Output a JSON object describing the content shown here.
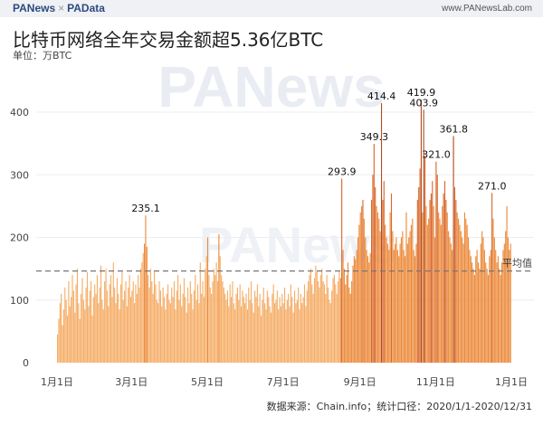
{
  "header": {
    "brand_left": "PANews",
    "brand_sep": "×",
    "brand_right": "PAData",
    "site": "www.PANewsLab.com"
  },
  "title": "比特币网络全年交易金额超5.36亿BTC",
  "unit": "单位：万BTC",
  "footer": "数据来源：Chain.info；统计口径：2020/1/1-2020/12/31",
  "watermark": "PANews",
  "colors": {
    "low": "#f5ad66",
    "mid": "#ec8a3a",
    "high": "#d9682a",
    "peak": "#b44d1c",
    "avg_line": "#777777"
  },
  "chart_data": {
    "type": "bar",
    "title": "比特币网络全年交易金额超5.36亿BTC",
    "ylabel": "单位：万BTC",
    "ylim": [
      0,
      440
    ],
    "yticks": [
      0,
      100,
      200,
      300,
      400
    ],
    "xticks": [
      "1月1日",
      "3月1日",
      "5月1日",
      "7月1日",
      "9月1日",
      "11月1日",
      "1月1日"
    ],
    "grid": true,
    "average": {
      "label": "平均值",
      "value": 146.4
    },
    "annotations": [
      {
        "day": 71,
        "label": "235.1"
      },
      {
        "day": 229,
        "label": "293.9"
      },
      {
        "day": 255,
        "label": "349.3"
      },
      {
        "day": 261,
        "label": "414.4"
      },
      {
        "day": 293,
        "label": "419.9"
      },
      {
        "day": 295,
        "label": "403.9"
      },
      {
        "day": 305,
        "label": "321.0"
      },
      {
        "day": 319,
        "label": "361.8"
      },
      {
        "day": 350,
        "label": "271.0"
      }
    ],
    "values": [
      45,
      70,
      95,
      110,
      60,
      85,
      120,
      100,
      75,
      130,
      90,
      105,
      140,
      115,
      80,
      125,
      150,
      95,
      70,
      110,
      135,
      100,
      85,
      120,
      145,
      90,
      115,
      130,
      75,
      105,
      125,
      110,
      140,
      95,
      120,
      155,
      100,
      85,
      130,
      150,
      115,
      90,
      125,
      140,
      105,
      160,
      120,
      95,
      135,
      110,
      85,
      125,
      145,
      100,
      115,
      130,
      90,
      120,
      140,
      105,
      115,
      130,
      95,
      125,
      110,
      140,
      120,
      150,
      160,
      175,
      190,
      235.1,
      185,
      140,
      120,
      150,
      130,
      110,
      145,
      125,
      100,
      95,
      130,
      115,
      90,
      120,
      105,
      85,
      110,
      125,
      100,
      95,
      120,
      105,
      130,
      85,
      115,
      140,
      100,
      125,
      90,
      110,
      135,
      105,
      80,
      120,
      95,
      130,
      110,
      85,
      115,
      140,
      100,
      125,
      95,
      160,
      110,
      130,
      105,
      150,
      170,
      200,
      140,
      120,
      110,
      130,
      150,
      140,
      160,
      130,
      205,
      170,
      140,
      130,
      120,
      110,
      100,
      115,
      90,
      125,
      105,
      130,
      95,
      85,
      110,
      120,
      100,
      125,
      90,
      115,
      105,
      95,
      110,
      85,
      120,
      100,
      130,
      95,
      80,
      115,
      105,
      125,
      90,
      110,
      75,
      100,
      120,
      95,
      85,
      115,
      105,
      90,
      80,
      110,
      125,
      95,
      100,
      115,
      85,
      105,
      90,
      110,
      95,
      120,
      85,
      100,
      110,
      90,
      125,
      105,
      80,
      115,
      95,
      100,
      120,
      85,
      110,
      95,
      105,
      125,
      90,
      115,
      130,
      140,
      150,
      125,
      110,
      135,
      155,
      145,
      130,
      120,
      140,
      150,
      130,
      125,
      110,
      140,
      120,
      100,
      95,
      115,
      135,
      140,
      125,
      110,
      130,
      145,
      135,
      293.9,
      180,
      150,
      125,
      140,
      160,
      120,
      110,
      130,
      155,
      170,
      165,
      180,
      200,
      220,
      240,
      250,
      260,
      230,
      200,
      180,
      170,
      160,
      175,
      260,
      300,
      349.3,
      280,
      250,
      240,
      230,
      210,
      414.4,
      260,
      290,
      220,
      200,
      190,
      180,
      240,
      270,
      210,
      180,
      190,
      200,
      180,
      170,
      190,
      200,
      210,
      180,
      170,
      240,
      190,
      200,
      210,
      220,
      230,
      180,
      170,
      190,
      260,
      280,
      310,
      419.9,
      240,
      403.9,
      330,
      250,
      220,
      230,
      260,
      270,
      290,
      250,
      200,
      321.0,
      300,
      240,
      230,
      220,
      250,
      270,
      290,
      260,
      240,
      210,
      200,
      190,
      180,
      361.8,
      280,
      260,
      240,
      230,
      220,
      210,
      200,
      190,
      240,
      230,
      220,
      200,
      180,
      170,
      160,
      150,
      140,
      170,
      180,
      160,
      150,
      190,
      210,
      200,
      180,
      160,
      150,
      140,
      170,
      180,
      271.0,
      230,
      200,
      180,
      160,
      170,
      150,
      140,
      160,
      180,
      190,
      210,
      250,
      200,
      180,
      190
    ]
  }
}
